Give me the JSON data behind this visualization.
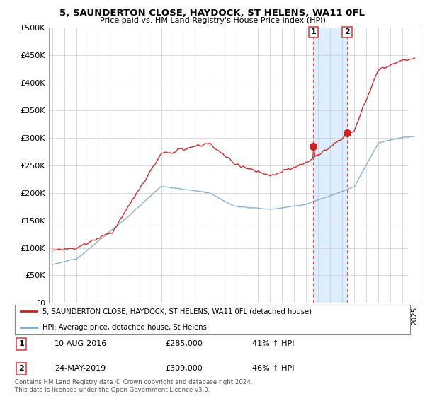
{
  "title": "5, SAUNDERTON CLOSE, HAYDOCK, ST HELENS, WA11 0FL",
  "subtitle": "Price paid vs. HM Land Registry's House Price Index (HPI)",
  "ylim": [
    0,
    500000
  ],
  "yticks": [
    0,
    50000,
    100000,
    150000,
    200000,
    250000,
    300000,
    350000,
    400000,
    450000,
    500000
  ],
  "ytick_labels": [
    "£0",
    "£50K",
    "£100K",
    "£150K",
    "£200K",
    "£250K",
    "£300K",
    "£350K",
    "£400K",
    "£450K",
    "£500K"
  ],
  "red_color": "#cc2222",
  "blue_color": "#7aaad0",
  "vline_color": "#dd4444",
  "shade_color": "#ddeeff",
  "marker1_date": 2016.61,
  "marker1_value": 285000,
  "marker2_date": 2019.39,
  "marker2_value": 309000,
  "legend_line1": "5, SAUNDERTON CLOSE, HAYDOCK, ST HELENS, WA11 0FL (detached house)",
  "legend_line2": "HPI: Average price, detached house, St Helens",
  "annot1_date": "10-AUG-2016",
  "annot1_price": "£285,000",
  "annot1_hpi": "41% ↑ HPI",
  "annot2_date": "24-MAY-2019",
  "annot2_price": "£309,000",
  "annot2_hpi": "46% ↑ HPI",
  "footer": "Contains HM Land Registry data © Crown copyright and database right 2024.\nThis data is licensed under the Open Government Licence v3.0.",
  "background_color": "#ffffff",
  "grid_color": "#cccccc",
  "xlim_start": 1994.7,
  "xlim_end": 2025.5
}
